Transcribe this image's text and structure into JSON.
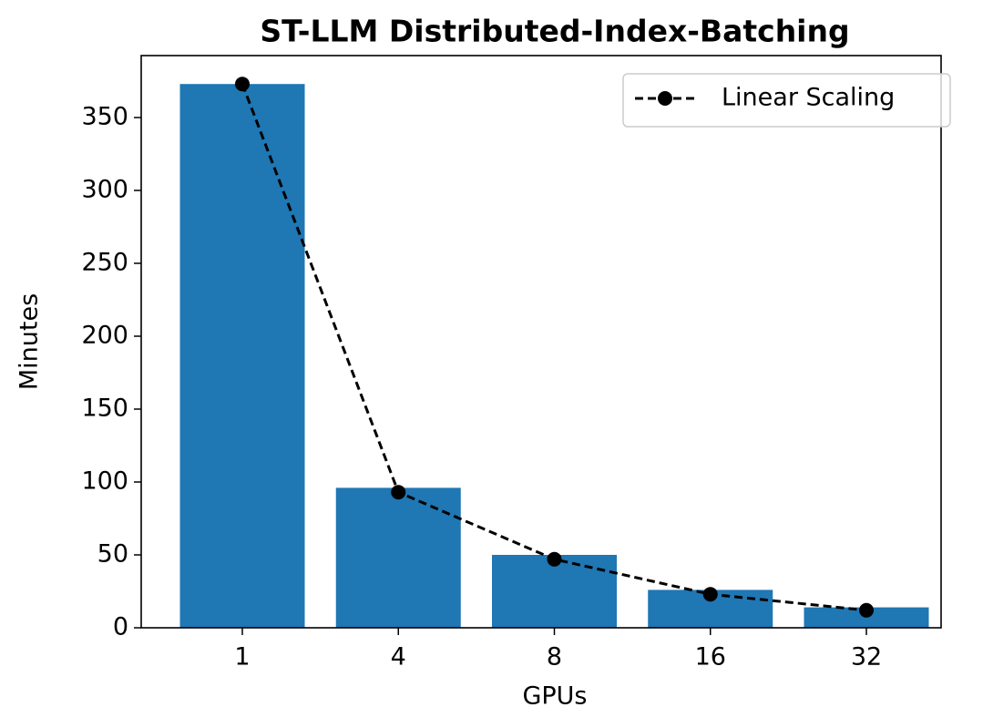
{
  "chart_data": {
    "type": "bar",
    "title": "ST-LLM Distributed-Index-Batching",
    "x_label": "GPUs",
    "y_label": "Minutes",
    "categories": [
      "1",
      "4",
      "8",
      "16",
      "32"
    ],
    "values": [
      373,
      96,
      50,
      26,
      14
    ],
    "color": "#1f77b4",
    "series": [
      {
        "name": "Linear Scaling",
        "type": "line",
        "color": "#000000",
        "linestyle": "dashed",
        "marker": "circle",
        "values": [
          373,
          93,
          47,
          23,
          12
        ]
      }
    ],
    "ylim": [
      0,
      392.5
    ],
    "yticks": [
      0,
      50,
      100,
      150,
      200,
      250,
      300,
      350
    ],
    "grid": false,
    "legend": "upper right"
  }
}
